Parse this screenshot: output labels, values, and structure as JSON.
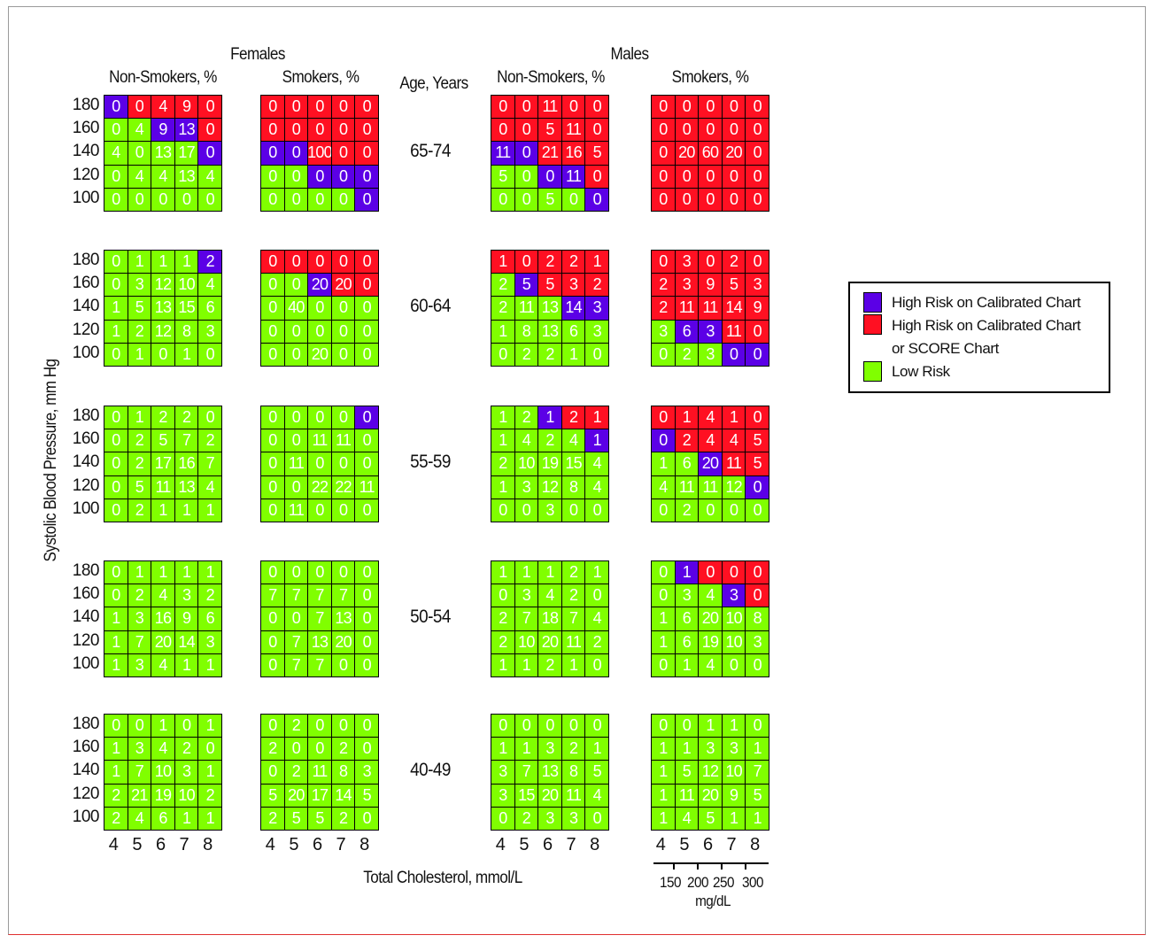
{
  "chart_data": {
    "type": "heatmap",
    "ylabel": "Systolic Blood Pressure, mm Hg",
    "xlabel": "Total Cholesterol, mmol/L",
    "x_ticks": [
      "4",
      "5",
      "6",
      "7",
      "8"
    ],
    "y_ticks": [
      "180",
      "160",
      "140",
      "120",
      "100"
    ],
    "secondary_x_ticks": [
      "150",
      "200",
      "250",
      "300"
    ],
    "secondary_x_unit": "mg/dL",
    "sex_headers": [
      "Females",
      "Males"
    ],
    "column_headers": [
      "Non-Smokers, %",
      "Smokers, %",
      "Non-Smokers, %",
      "Smokers, %"
    ],
    "age_header": "Age, Years",
    "colors": {
      "b": "#5b00e6",
      "r": "#ff1022",
      "g": "#80ff00"
    },
    "legend": {
      "placement": "right",
      "items": [
        {
          "color": "b",
          "label": "High Risk on Calibrated Chart"
        },
        {
          "color": "r",
          "label": "High Risk on Calibrated Chart",
          "label2": "or SCORE Chart"
        },
        {
          "color": "g",
          "label": "Low Risk"
        }
      ]
    },
    "age_groups": [
      {
        "age": "65-74",
        "panels": [
          {
            "values": [
              [
                0,
                0,
                4,
                9,
                0
              ],
              [
                0,
                4,
                9,
                13,
                0
              ],
              [
                4,
                0,
                13,
                17,
                0
              ],
              [
                0,
                4,
                4,
                13,
                4
              ],
              [
                0,
                0,
                0,
                0,
                0
              ]
            ],
            "colors": [
              "brrrr",
              "ggbbr",
              "ggggb",
              "ggggg",
              "ggggg"
            ]
          },
          {
            "values": [
              [
                0,
                0,
                0,
                0,
                0
              ],
              [
                0,
                0,
                0,
                0,
                0
              ],
              [
                0,
                0,
                100,
                0,
                0
              ],
              [
                0,
                0,
                0,
                0,
                0
              ],
              [
                0,
                0,
                0,
                0,
                0
              ]
            ],
            "colors": [
              "rrrrr",
              "rrrrr",
              "bbrrr",
              "ggbbb",
              "ggggb"
            ]
          },
          {
            "values": [
              [
                0,
                0,
                11,
                0,
                0
              ],
              [
                0,
                0,
                5,
                11,
                0
              ],
              [
                11,
                0,
                21,
                16,
                5
              ],
              [
                5,
                0,
                0,
                11,
                0
              ],
              [
                0,
                0,
                5,
                0,
                0
              ]
            ],
            "colors": [
              "rrrrr",
              "rrrrr",
              "bbrrr",
              "ggbbr",
              "ggggb"
            ]
          },
          {
            "values": [
              [
                0,
                0,
                0,
                0,
                0
              ],
              [
                0,
                0,
                0,
                0,
                0
              ],
              [
                0,
                20,
                60,
                20,
                0
              ],
              [
                0,
                0,
                0,
                0,
                0
              ],
              [
                0,
                0,
                0,
                0,
                0
              ]
            ],
            "colors": [
              "rrrrr",
              "rrrrr",
              "rrrrr",
              "rrrrr",
              "rrrrr"
            ]
          }
        ]
      },
      {
        "age": "60-64",
        "panels": [
          {
            "values": [
              [
                0,
                1,
                1,
                1,
                2
              ],
              [
                0,
                3,
                12,
                10,
                4
              ],
              [
                1,
                5,
                13,
                15,
                6
              ],
              [
                1,
                2,
                12,
                8,
                3
              ],
              [
                0,
                1,
                0,
                1,
                0
              ]
            ],
            "colors": [
              "ggggb",
              "ggggg",
              "ggggg",
              "ggggg",
              "ggggg"
            ]
          },
          {
            "values": [
              [
                0,
                0,
                0,
                0,
                0
              ],
              [
                0,
                0,
                20,
                20,
                0
              ],
              [
                0,
                40,
                0,
                0,
                0
              ],
              [
                0,
                0,
                0,
                0,
                0
              ],
              [
                0,
                0,
                20,
                0,
                0
              ]
            ],
            "colors": [
              "rrrrr",
              "ggbrr",
              "ggggg",
              "ggggg",
              "ggggg"
            ]
          },
          {
            "values": [
              [
                1,
                0,
                2,
                2,
                1
              ],
              [
                2,
                5,
                5,
                3,
                2
              ],
              [
                2,
                11,
                13,
                14,
                3
              ],
              [
                1,
                8,
                13,
                6,
                3
              ],
              [
                0,
                2,
                2,
                1,
                0
              ]
            ],
            "colors": [
              "rrrrr",
              "gbrrr",
              "gggbb",
              "ggggg",
              "ggggg"
            ]
          },
          {
            "values": [
              [
                0,
                3,
                0,
                2,
                0
              ],
              [
                2,
                3,
                9,
                5,
                3
              ],
              [
                2,
                11,
                11,
                14,
                9
              ],
              [
                3,
                6,
                3,
                11,
                0
              ],
              [
                0,
                2,
                3,
                0,
                0
              ]
            ],
            "colors": [
              "rrrrr",
              "rrrrr",
              "rrrrr",
              "gbbrr",
              "gggbb"
            ]
          }
        ]
      },
      {
        "age": "55-59",
        "panels": [
          {
            "values": [
              [
                0,
                1,
                2,
                2,
                0
              ],
              [
                0,
                2,
                5,
                7,
                2
              ],
              [
                0,
                2,
                17,
                16,
                7
              ],
              [
                0,
                5,
                11,
                13,
                4
              ],
              [
                0,
                2,
                1,
                1,
                1
              ]
            ],
            "colors": [
              "ggggg",
              "ggggg",
              "ggggg",
              "ggggg",
              "ggggg"
            ]
          },
          {
            "values": [
              [
                0,
                0,
                0,
                0,
                0
              ],
              [
                0,
                0,
                11,
                11,
                0
              ],
              [
                0,
                11,
                0,
                0,
                0
              ],
              [
                0,
                0,
                22,
                22,
                11
              ],
              [
                0,
                11,
                0,
                0,
                0
              ]
            ],
            "colors": [
              "ggggb",
              "ggggg",
              "ggggg",
              "ggggg",
              "ggggg"
            ]
          },
          {
            "values": [
              [
                1,
                2,
                1,
                2,
                1
              ],
              [
                1,
                4,
                2,
                4,
                1
              ],
              [
                2,
                10,
                19,
                15,
                4
              ],
              [
                1,
                3,
                12,
                8,
                4
              ],
              [
                0,
                0,
                3,
                0,
                0
              ]
            ],
            "colors": [
              "ggbrr",
              "ggggb",
              "ggggg",
              "ggggg",
              "ggggg"
            ]
          },
          {
            "values": [
              [
                0,
                1,
                4,
                1,
                0
              ],
              [
                0,
                2,
                4,
                4,
                5
              ],
              [
                1,
                6,
                20,
                11,
                5
              ],
              [
                4,
                11,
                11,
                12,
                0
              ],
              [
                0,
                2,
                0,
                0,
                0
              ]
            ],
            "colors": [
              "rrrrr",
              "brrrr",
              "ggbrr",
              "ggggb",
              "ggggg"
            ]
          }
        ]
      },
      {
        "age": "50-54",
        "panels": [
          {
            "values": [
              [
                0,
                1,
                1,
                1,
                1
              ],
              [
                0,
                2,
                4,
                3,
                2
              ],
              [
                1,
                3,
                16,
                9,
                6
              ],
              [
                1,
                7,
                20,
                14,
                3
              ],
              [
                1,
                3,
                4,
                1,
                1
              ]
            ],
            "colors": [
              "ggggg",
              "ggggg",
              "ggggg",
              "ggggg",
              "ggggg"
            ]
          },
          {
            "values": [
              [
                0,
                0,
                0,
                0,
                0
              ],
              [
                7,
                7,
                7,
                7,
                0
              ],
              [
                0,
                0,
                7,
                13,
                0
              ],
              [
                0,
                7,
                13,
                20,
                0
              ],
              [
                0,
                7,
                7,
                0,
                0
              ]
            ],
            "colors": [
              "ggggg",
              "ggggg",
              "ggggg",
              "ggggg",
              "ggggg"
            ]
          },
          {
            "values": [
              [
                1,
                1,
                1,
                2,
                1
              ],
              [
                0,
                3,
                4,
                2,
                0
              ],
              [
                2,
                7,
                18,
                7,
                4
              ],
              [
                2,
                10,
                20,
                11,
                2
              ],
              [
                1,
                1,
                2,
                1,
                0
              ]
            ],
            "colors": [
              "ggggg",
              "ggggg",
              "ggggg",
              "ggggg",
              "ggggg"
            ]
          },
          {
            "values": [
              [
                0,
                1,
                0,
                0,
                0
              ],
              [
                0,
                3,
                4,
                3,
                0
              ],
              [
                1,
                6,
                20,
                10,
                8
              ],
              [
                1,
                6,
                19,
                10,
                3
              ],
              [
                0,
                1,
                4,
                0,
                0
              ]
            ],
            "colors": [
              "gbrrr",
              "gggbr",
              "ggggg",
              "ggggg",
              "ggggg"
            ]
          }
        ]
      },
      {
        "age": "40-49",
        "panels": [
          {
            "values": [
              [
                0,
                0,
                1,
                0,
                1
              ],
              [
                1,
                3,
                4,
                2,
                0
              ],
              [
                1,
                7,
                10,
                3,
                1
              ],
              [
                2,
                21,
                19,
                10,
                2
              ],
              [
                2,
                4,
                6,
                1,
                1
              ]
            ],
            "colors": [
              "ggggg",
              "ggggg",
              "ggggg",
              "ggggg",
              "ggggg"
            ]
          },
          {
            "values": [
              [
                0,
                2,
                0,
                0,
                0
              ],
              [
                2,
                0,
                0,
                2,
                0
              ],
              [
                0,
                2,
                11,
                8,
                3
              ],
              [
                5,
                20,
                17,
                14,
                5
              ],
              [
                2,
                5,
                5,
                2,
                0
              ]
            ],
            "colors": [
              "ggggg",
              "ggggg",
              "ggggg",
              "ggggg",
              "ggggg"
            ]
          },
          {
            "values": [
              [
                0,
                0,
                0,
                0,
                0
              ],
              [
                1,
                1,
                3,
                2,
                1
              ],
              [
                3,
                7,
                13,
                8,
                5
              ],
              [
                3,
                15,
                20,
                11,
                4
              ],
              [
                0,
                2,
                3,
                3,
                0
              ]
            ],
            "colors": [
              "ggggg",
              "ggggg",
              "ggggg",
              "ggggg",
              "ggggg"
            ]
          },
          {
            "values": [
              [
                0,
                0,
                1,
                1,
                0
              ],
              [
                1,
                1,
                3,
                3,
                1
              ],
              [
                1,
                5,
                12,
                10,
                7
              ],
              [
                1,
                11,
                20,
                9,
                5
              ],
              [
                1,
                4,
                5,
                1,
                1
              ]
            ],
            "colors": [
              "ggggg",
              "ggggg",
              "ggggg",
              "ggggg",
              "ggggg"
            ]
          }
        ]
      }
    ]
  }
}
